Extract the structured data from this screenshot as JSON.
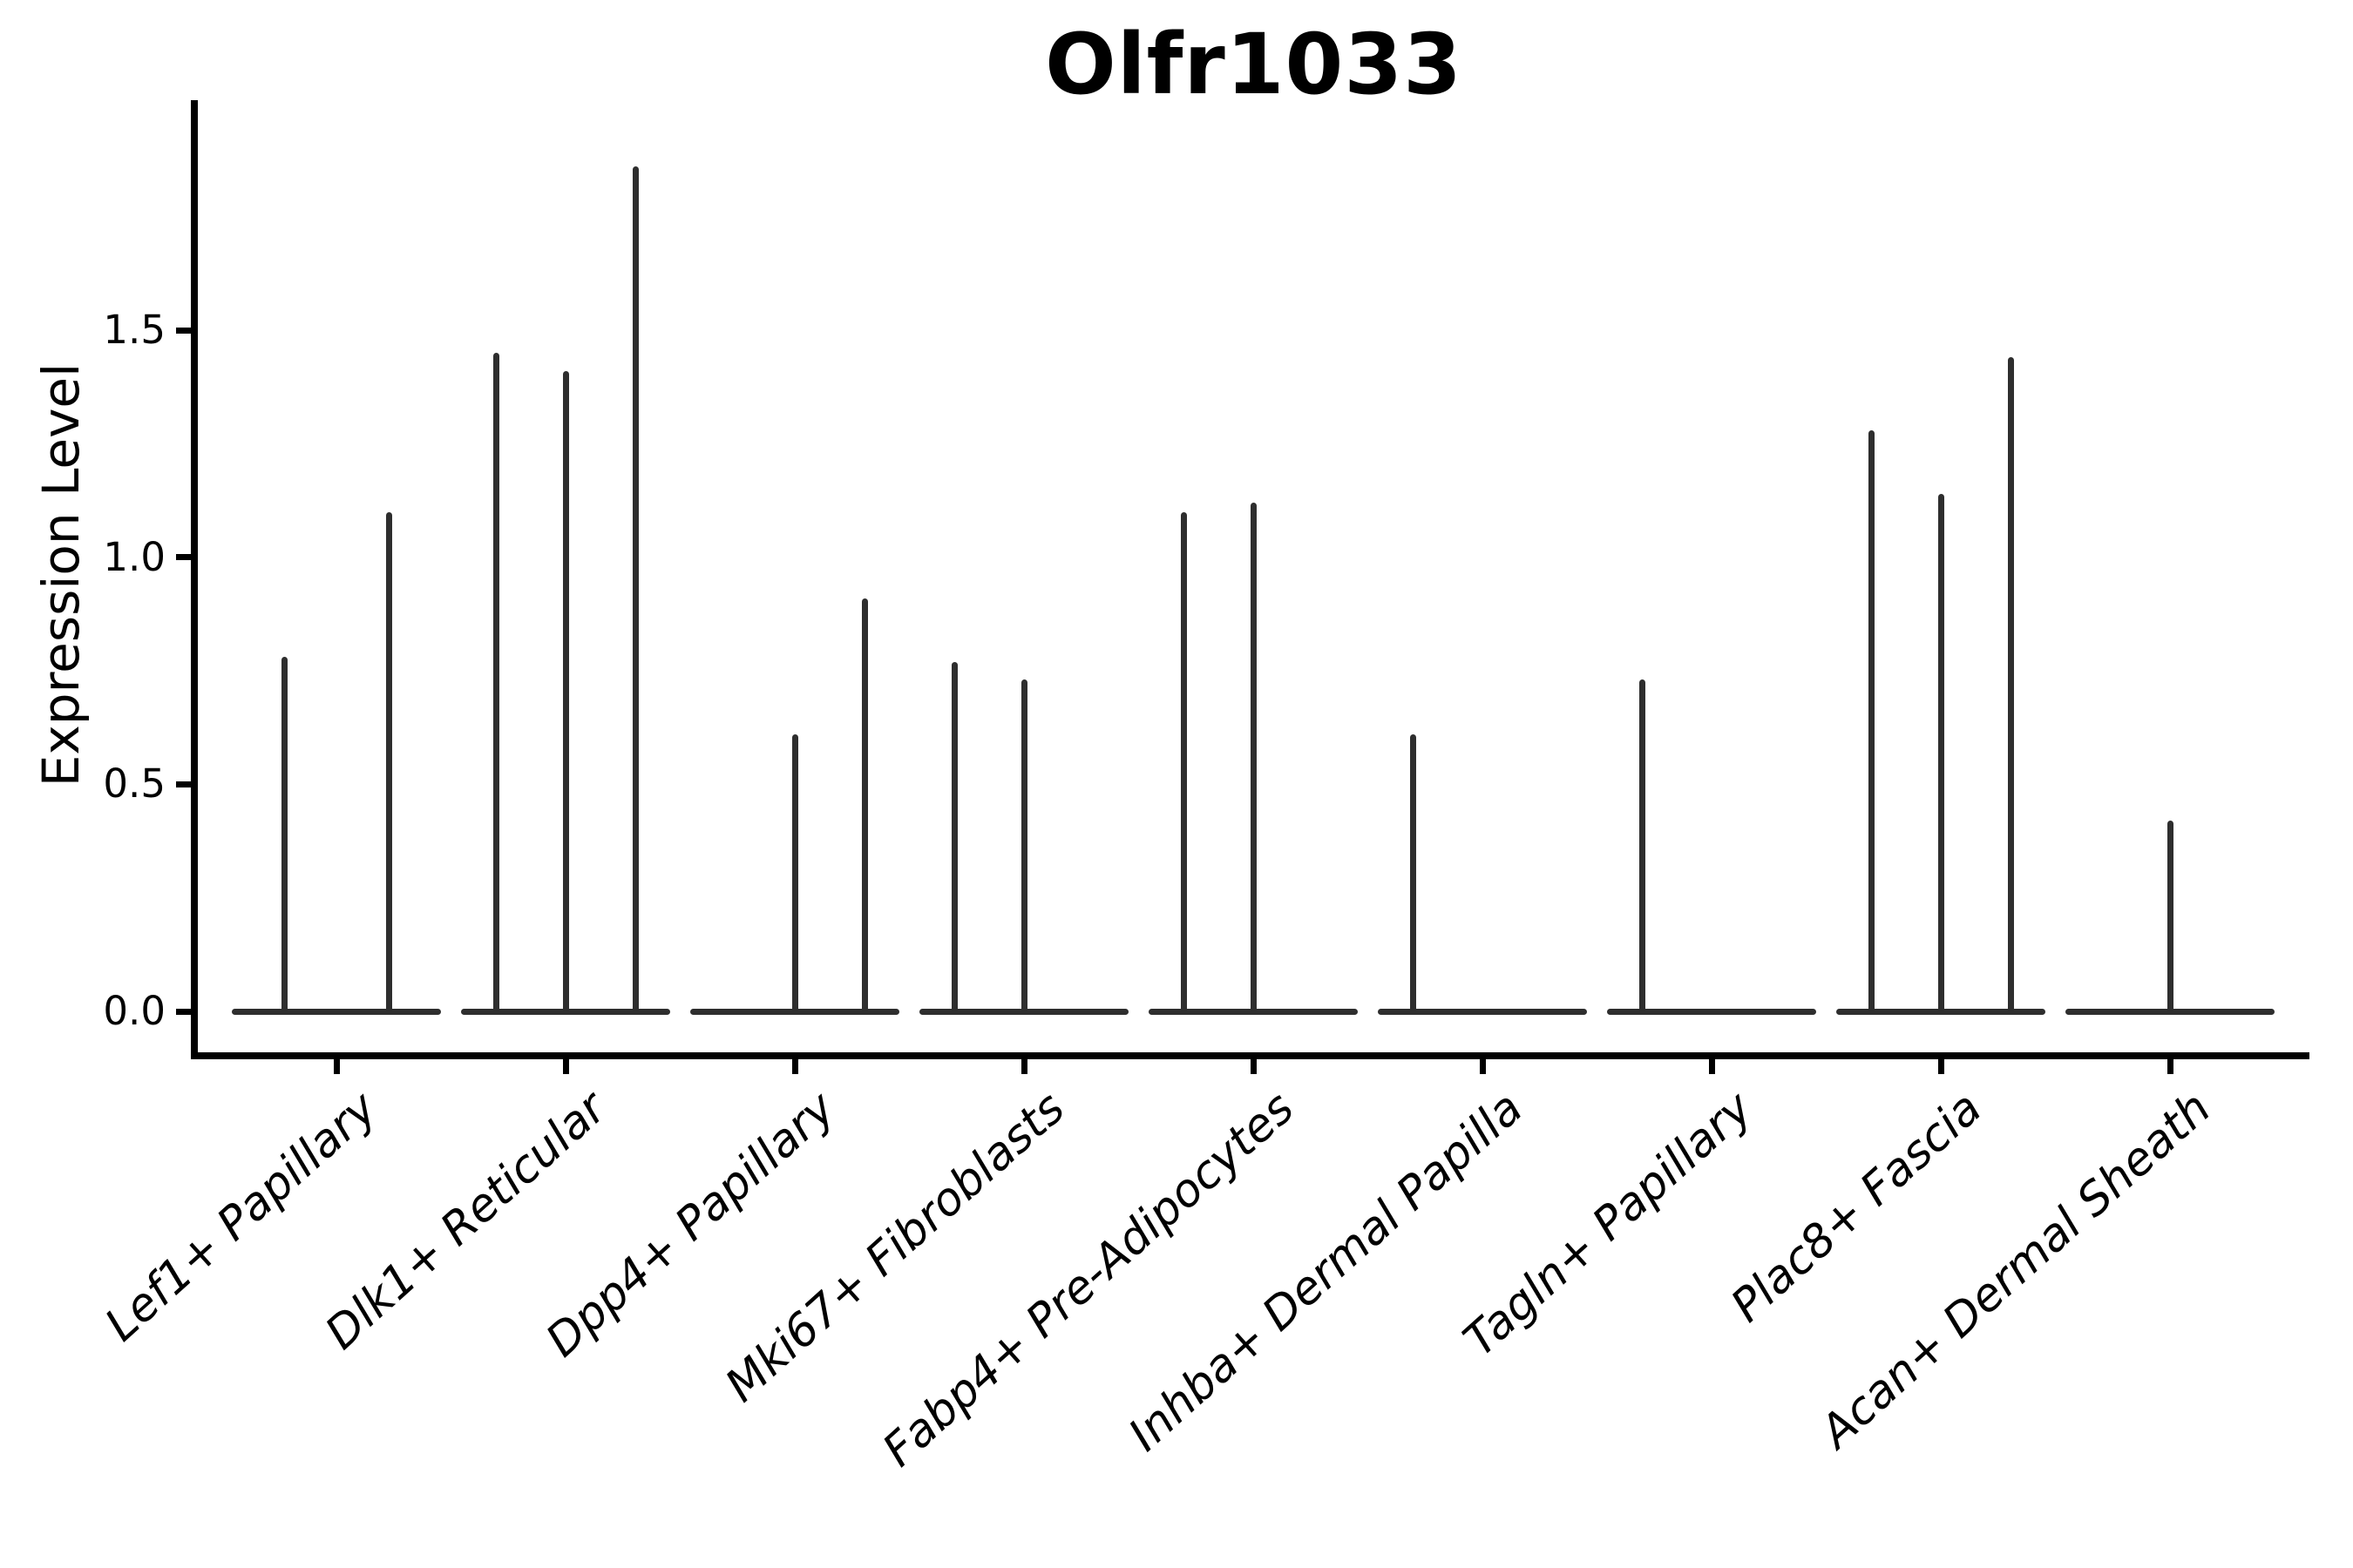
{
  "title": "Olfr1033",
  "y_axis": {
    "label": "Expression Level",
    "tick_labels": [
      "0.0",
      "0.5",
      "1.0",
      "1.5"
    ]
  },
  "chart_data": {
    "type": "violin",
    "title": "Olfr1033",
    "xlabel": "",
    "ylabel": "Expression Level",
    "ylim": [
      -0.09,
      2.0
    ],
    "yticks": [
      0.0,
      0.5,
      1.0,
      1.5
    ],
    "ytick_labels": [
      "0.0",
      "0.5",
      "1.0",
      "1.5"
    ],
    "grid": false,
    "legend": false,
    "x_tick_rotation_deg": 42,
    "line_color": "#2e2e2e",
    "axis_color": "#000000",
    "background_color": "#ffffff",
    "note": "Collapsed violins: nearly all cells have 0 expression so each violin is a flat bar at y=0; each category contains sub-violins (slots) whose maximum expression appears as a thin vertical spike. A value of 0 means that sub-violin has no spike.",
    "categories": [
      "Lef1+ Papillary",
      "Dlk1+ Reticular",
      "Dpp4+ Papillary",
      "Mki67+ Fibroblasts",
      "Fabp4+ Pre-Adipocytes",
      "Inhba+ Dermal Papilla",
      "Tagln+ Papillary",
      "Plac8+ Fascia",
      "Acan+ Dermal Sheath"
    ],
    "violins": [
      {
        "category": "Lef1+ Papillary",
        "subviolin_max_values": [
          0.78,
          1.1
        ]
      },
      {
        "category": "Dlk1+ Reticular",
        "subviolin_max_values": [
          1.45,
          1.41,
          1.86
        ]
      },
      {
        "category": "Dpp4+ Papillary",
        "subviolin_max_values": [
          0,
          0.61,
          0.91
        ]
      },
      {
        "category": "Mki67+ Fibroblasts",
        "subviolin_max_values": [
          0.77,
          0.73,
          0
        ]
      },
      {
        "category": "Fabp4+ Pre-Adipocytes",
        "subviolin_max_values": [
          1.1,
          1.12,
          0
        ]
      },
      {
        "category": "Inhba+ Dermal Papilla",
        "subviolin_max_values": [
          0.61,
          0,
          0
        ]
      },
      {
        "category": "Tagln+ Papillary",
        "subviolin_max_values": [
          0.73,
          0,
          0
        ]
      },
      {
        "category": "Plac8+ Fascia",
        "subviolin_max_values": [
          1.28,
          1.14,
          1.44
        ]
      },
      {
        "category": "Acan+ Dermal Sheath",
        "subviolin_max_values": [
          0,
          0.42,
          0
        ]
      }
    ]
  }
}
